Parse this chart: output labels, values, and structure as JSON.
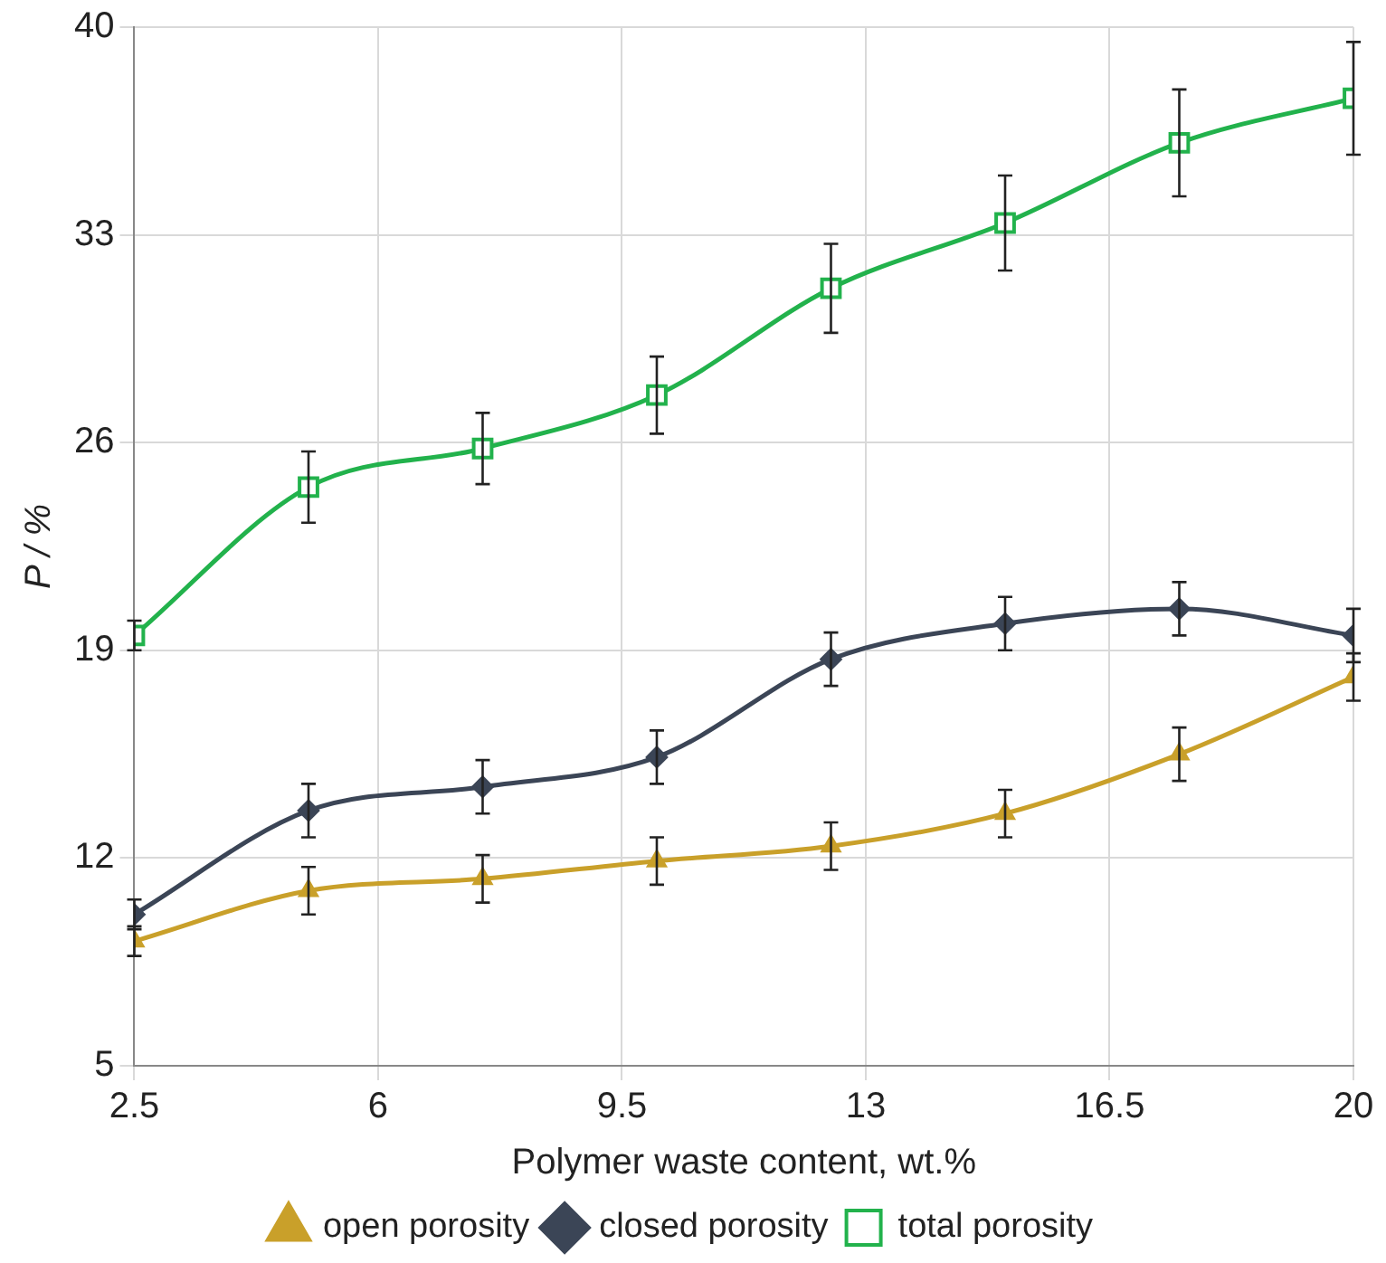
{
  "chart_data": {
    "type": "line",
    "xlabel": "Polymer waste content, wt.%",
    "ylabel": "P / %",
    "x": [
      2.5,
      5,
      7.5,
      10,
      12.5,
      15,
      17.5,
      20
    ],
    "xlim": [
      2.5,
      20
    ],
    "xticks": [
      2.5,
      6,
      9.5,
      13,
      16.5,
      20
    ],
    "ylim": [
      5,
      40
    ],
    "yticks": [
      5,
      12,
      19,
      26,
      33,
      40
    ],
    "grid": true,
    "legend": "bottom",
    "line_style": "solid",
    "series": [
      {
        "name": "open porosity",
        "color": "#c9a02a",
        "marker": "triangle",
        "values": [
          9.2,
          10.9,
          11.3,
          11.9,
          12.4,
          13.5,
          15.5,
          18.1
        ],
        "errors": [
          0.5,
          0.8,
          0.8,
          0.8,
          0.8,
          0.8,
          0.9,
          0.8
        ]
      },
      {
        "name": "closed porosity",
        "color": "#3b4556",
        "marker": "diamond",
        "values": [
          10.1,
          13.6,
          14.4,
          15.4,
          18.7,
          19.9,
          20.4,
          19.5
        ],
        "errors": [
          0.5,
          0.9,
          0.9,
          0.9,
          0.9,
          0.9,
          0.9,
          0.9
        ]
      },
      {
        "name": "total porosity",
        "color": "#22b24c",
        "marker": "square",
        "values": [
          19.5,
          24.5,
          25.8,
          27.6,
          31.2,
          33.4,
          36.1,
          37.6
        ],
        "errors": [
          0.5,
          1.2,
          1.2,
          1.3,
          1.5,
          1.6,
          1.8,
          1.9
        ]
      }
    ]
  }
}
